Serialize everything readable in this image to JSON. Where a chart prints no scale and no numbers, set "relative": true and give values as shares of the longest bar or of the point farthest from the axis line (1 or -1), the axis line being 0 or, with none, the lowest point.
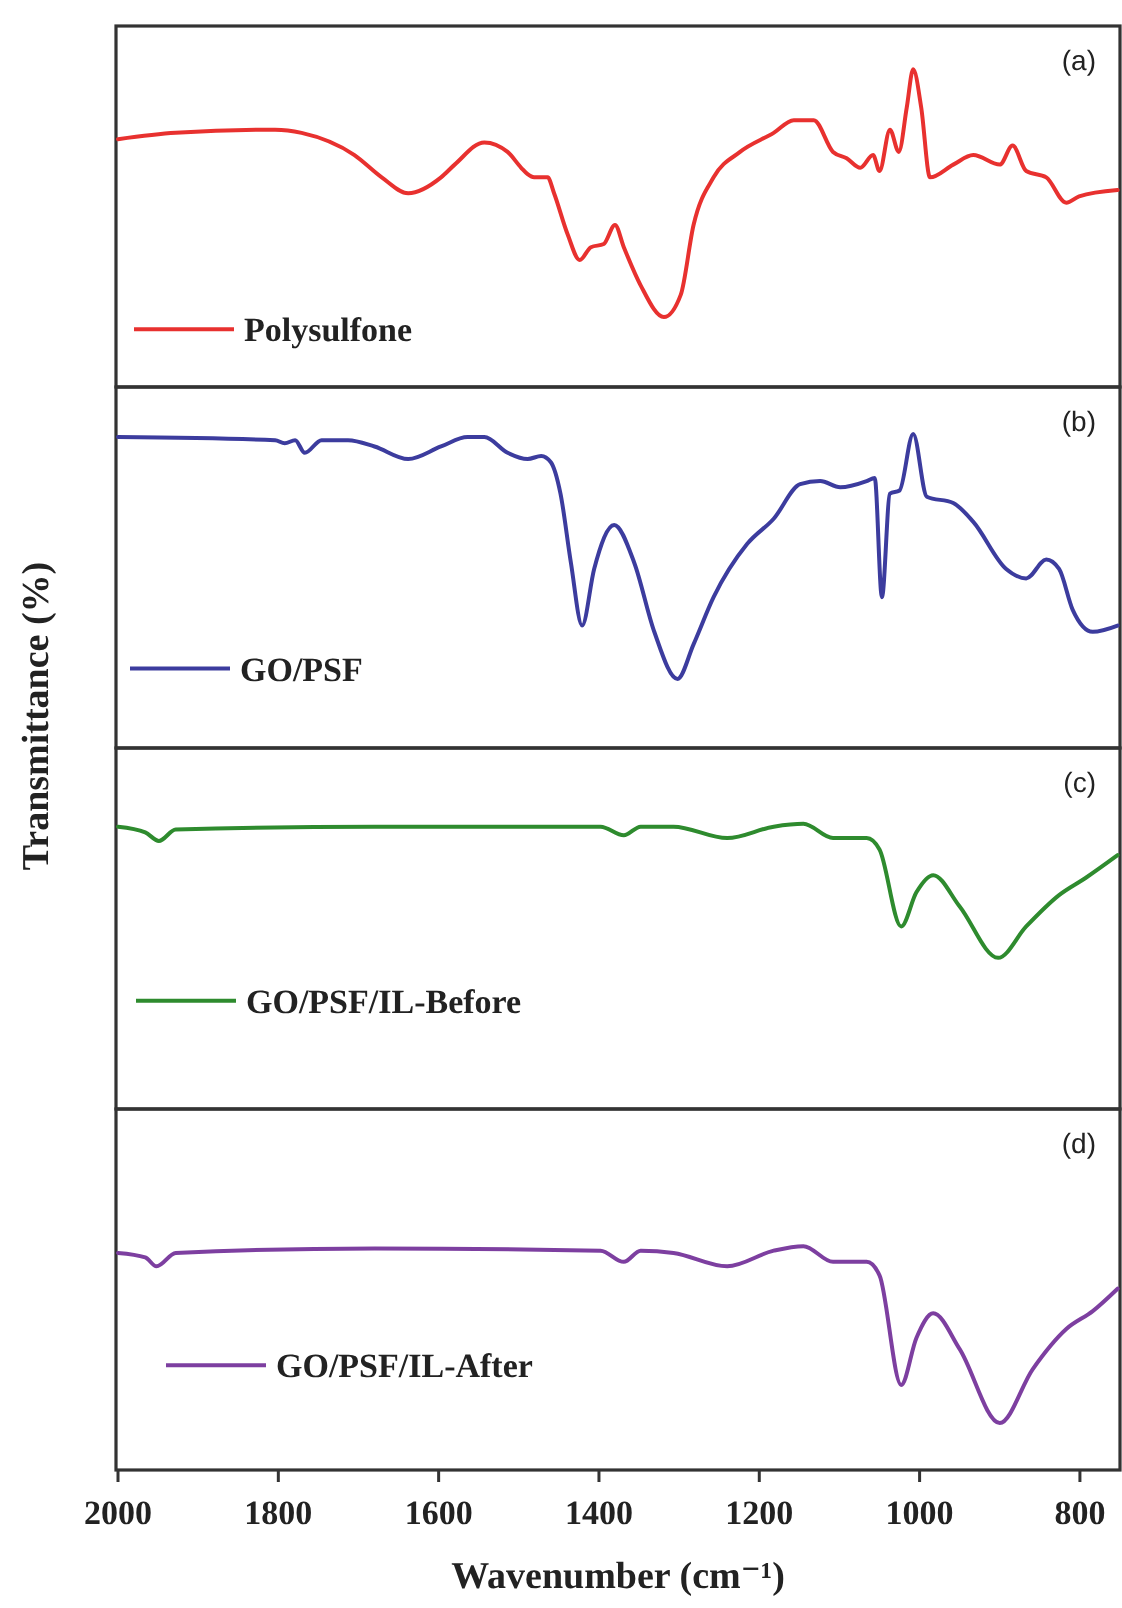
{
  "chart_data": [
    {
      "type": "line",
      "relative": true,
      "xlim": [
        2000,
        750
      ],
      "tick_labels": false,
      "legend": "bottom left",
      "annotations": [
        "(a)"
      ],
      "series": [
        {
          "name": "Polysulfone",
          "color": "#e8312f",
          "x": [
            2000,
            1928,
            1804,
            1771,
            1705,
            1671,
            1638,
            1597,
            1580,
            1543,
            1514,
            1497,
            1489,
            1481,
            1464,
            1456,
            1439,
            1424,
            1410,
            1394,
            1380,
            1369,
            1348,
            1319,
            1298,
            1282,
            1257,
            1224,
            1182,
            1157,
            1132,
            1108,
            1091,
            1074,
            1058,
            1050,
            1037,
            1026,
            1016,
            1008,
            998,
            987,
            958,
            933,
            900,
            884,
            867,
            842,
            817,
            801,
            753
          ],
          "values": [
            0.78,
            0.8,
            0.81,
            0.8,
            0.73,
            0.66,
            0.61,
            0.66,
            0.7,
            0.77,
            0.74,
            0.69,
            0.67,
            0.66,
            0.66,
            0.61,
            0.48,
            0.4,
            0.44,
            0.45,
            0.51,
            0.44,
            0.32,
            0.22,
            0.29,
            0.51,
            0.66,
            0.74,
            0.8,
            0.84,
            0.84,
            0.74,
            0.72,
            0.69,
            0.73,
            0.68,
            0.81,
            0.74,
            0.88,
            1,
            0.88,
            0.66,
            0.7,
            0.73,
            0.7,
            0.76,
            0.68,
            0.66,
            0.58,
            0.6,
            0.62
          ]
        }
      ]
    },
    {
      "type": "line",
      "relative": true,
      "ylabel": "Transmittance (%)",
      "xlim": [
        2000,
        750
      ],
      "tick_labels": false,
      "legend": "bottom left",
      "annotations": [
        "(b)"
      ],
      "series": [
        {
          "name": "GO/PSF",
          "color": "#3c3c9e",
          "x": [
            2000,
            1804,
            1792,
            1779,
            1767,
            1746,
            1713,
            1680,
            1638,
            1597,
            1564,
            1543,
            1514,
            1489,
            1472,
            1460,
            1448,
            1435,
            1421,
            1406,
            1381,
            1356,
            1331,
            1302,
            1282,
            1257,
            1215,
            1182,
            1149,
            1124,
            1099,
            1066,
            1056,
            1047,
            1037,
            1025,
            1008,
            991,
            958,
            933,
            892,
            867,
            842,
            826,
            809,
            784,
            753
          ],
          "values": [
            0.99,
            0.98,
            0.97,
            0.98,
            0.94,
            0.98,
            0.98,
            0.96,
            0.92,
            0.96,
            0.99,
            0.99,
            0.94,
            0.92,
            0.93,
            0.91,
            0.81,
            0.59,
            0.39,
            0.57,
            0.71,
            0.59,
            0.37,
            0.22,
            0.33,
            0.48,
            0.65,
            0.73,
            0.84,
            0.85,
            0.83,
            0.85,
            0.86,
            0.48,
            0.81,
            0.82,
            1,
            0.8,
            0.78,
            0.72,
            0.57,
            0.54,
            0.6,
            0.57,
            0.44,
            0.37,
            0.39
          ]
        }
      ]
    },
    {
      "type": "line",
      "relative": true,
      "xlim": [
        2000,
        750
      ],
      "tick_labels": false,
      "legend": "bottom left",
      "annotations": [
        "(c)"
      ],
      "series": [
        {
          "name": "GO/PSF/IL-Before",
          "color": "#2e8b2e",
          "x": [
            2000,
            1966,
            1949,
            1928,
            1680,
            1398,
            1369,
            1348,
            1307,
            1240,
            1182,
            1145,
            1108,
            1066,
            1050,
            1023,
            1004,
            983,
            950,
            902,
            867,
            826,
            793,
            753
          ],
          "values": [
            0.99,
            0.97,
            0.94,
            0.98,
            0.99,
            0.99,
            0.96,
            0.99,
            0.99,
            0.95,
            0.99,
            1,
            0.95,
            0.95,
            0.91,
            0.64,
            0.76,
            0.82,
            0.71,
            0.53,
            0.64,
            0.75,
            0.81,
            0.89
          ]
        }
      ]
    },
    {
      "type": "line",
      "relative": true,
      "xlabel": "Wavenumber (cm⁻¹)",
      "xlim": [
        2000,
        750
      ],
      "xticks": [
        2000,
        1800,
        1600,
        1400,
        1200,
        1000,
        800
      ],
      "tick_labels": "x",
      "legend": "bottom left",
      "annotations": [
        "(d)"
      ],
      "series": [
        {
          "name": "GO/PSF/IL-After",
          "color": "#7d3fa0",
          "x": [
            2000,
            1966,
            1952,
            1928,
            1680,
            1398,
            1369,
            1348,
            1307,
            1240,
            1182,
            1145,
            1108,
            1066,
            1050,
            1023,
            1004,
            983,
            950,
            900,
            859,
            817,
            784,
            753
          ],
          "values": [
            0.97,
            0.95,
            0.91,
            0.97,
            0.99,
            0.98,
            0.93,
            0.98,
            0.97,
            0.91,
            0.98,
            1,
            0.93,
            0.93,
            0.87,
            0.38,
            0.59,
            0.7,
            0.54,
            0.21,
            0.45,
            0.63,
            0.71,
            0.81
          ]
        }
      ]
    }
  ]
}
